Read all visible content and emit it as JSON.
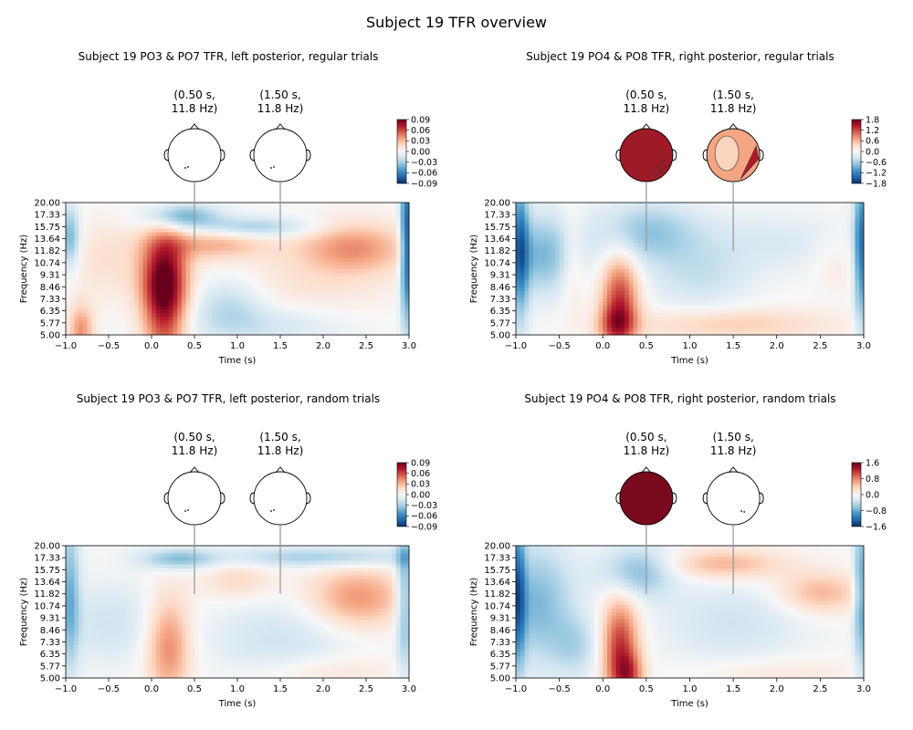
{
  "suptitle": "Subject 19 TFR overview",
  "colors": {
    "cmap": [
      "#053061",
      "#2166ac",
      "#4393c3",
      "#92c5de",
      "#d1e5f0",
      "#f7f7f7",
      "#fddbc7",
      "#f4a582",
      "#d6604d",
      "#b2182b",
      "#67001f"
    ],
    "connector": "#9a9a9a"
  },
  "chart_data": [
    {
      "type": "heatmap",
      "title": "Subject 19 PO3 & PO7 TFR, left posterior, regular trials",
      "xlabel": "Time (s)",
      "ylabel": "Frequency (Hz)",
      "xlim": [
        -1.0,
        3.0
      ],
      "xticks": [
        "−1.0",
        "−0.5",
        "0.0",
        "0.5",
        "1.0",
        "1.5",
        "2.0",
        "2.5",
        "3.0"
      ],
      "yticks": [
        "5.00",
        "5.77",
        "6.35",
        "7.33",
        "8.46",
        "9.31",
        "10.74",
        "11.82",
        "13.64",
        "15.75",
        "17.33",
        "20.00"
      ],
      "yvalues": [
        5.0,
        5.77,
        6.35,
        7.33,
        8.46,
        9.31,
        10.74,
        11.82,
        13.64,
        15.75,
        17.33,
        20.0
      ],
      "vlim": [
        -0.09,
        0.09
      ],
      "colorbar_ticks": [
        "0.09",
        "0.06",
        "0.03",
        "0.00",
        "−0.03",
        "−0.06",
        "−0.09"
      ],
      "topomaps": [
        {
          "title": "(0.50 s,\n11.8 Hz)",
          "time": 0.5,
          "freq": 11.8,
          "fill": "none",
          "contour": false
        },
        {
          "title": "(1.50 s,\n11.8 Hz)",
          "time": 1.5,
          "freq": 11.8,
          "fill": "none",
          "contour": false
        }
      ],
      "blobs": [
        {
          "t": 0.15,
          "f": 7.2,
          "st": 0.18,
          "sf": 0.6,
          "a": 0.85
        },
        {
          "t": 0.15,
          "f": 9.5,
          "st": 0.2,
          "sf": 0.35,
          "a": 0.35
        },
        {
          "t": -0.82,
          "f": 5.3,
          "st": 0.1,
          "sf": 0.25,
          "a": 0.45
        },
        {
          "t": 0.35,
          "f": 17.2,
          "st": 0.3,
          "sf": 0.12,
          "a": -0.5
        },
        {
          "t": 1.2,
          "f": 15.7,
          "st": 0.5,
          "sf": 0.1,
          "a": -0.35
        },
        {
          "t": 0.7,
          "f": 12.8,
          "st": 0.45,
          "sf": 0.15,
          "a": 0.35
        },
        {
          "t": 2.35,
          "f": 12.3,
          "st": 0.45,
          "sf": 0.25,
          "a": 0.45
        },
        {
          "t": 1.8,
          "f": 8.5,
          "st": 0.7,
          "sf": 0.35,
          "a": 0.12
        },
        {
          "t": -0.5,
          "f": 11.0,
          "st": 0.35,
          "sf": 0.4,
          "a": 0.15
        },
        {
          "t": 0.9,
          "f": 7.0,
          "st": 0.3,
          "sf": 0.25,
          "a": -0.25
        },
        {
          "t": -0.95,
          "f": 14.0,
          "st": 0.08,
          "sf": 0.3,
          "a": -0.5
        },
        {
          "t": 2.97,
          "f": 13.0,
          "st": 0.05,
          "sf": 0.8,
          "a": -0.9
        },
        {
          "t": 1.3,
          "f": 5.6,
          "st": 0.7,
          "sf": 0.2,
          "a": -0.2
        }
      ]
    },
    {
      "type": "heatmap",
      "title": "Subject 19 PO4 & PO8 TFR, right posterior, regular trials",
      "xlabel": "Time (s)",
      "ylabel": "Frequency (Hz)",
      "xlim": [
        -1.0,
        3.0
      ],
      "xticks": [
        "−1.0",
        "−0.5",
        "0.0",
        "0.5",
        "1.0",
        "1.5",
        "2.0",
        "2.5",
        "3.0"
      ],
      "yticks": [
        "5.00",
        "5.77",
        "6.35",
        "7.33",
        "8.46",
        "9.31",
        "10.74",
        "11.82",
        "13.64",
        "15.75",
        "17.33",
        "20.00"
      ],
      "yvalues": [
        5.0,
        5.77,
        6.35,
        7.33,
        8.46,
        9.31,
        10.74,
        11.82,
        13.64,
        15.75,
        17.33,
        20.0
      ],
      "vlim": [
        -1.8,
        1.8
      ],
      "colorbar_ticks": [
        "1.8",
        "1.2",
        "0.6",
        "0.0",
        "−0.6",
        "−1.2",
        "−1.8"
      ],
      "topomaps": [
        {
          "title": "(0.50 s,\n11.8 Hz)",
          "time": 0.5,
          "freq": 11.8,
          "fill": "#9e1a26",
          "contour": true
        },
        {
          "title": "(1.50 s,\n11.8 Hz)",
          "time": 1.5,
          "freq": 11.8,
          "fill": "#f4a582",
          "contour": true
        }
      ],
      "blobs": [
        {
          "t": 0.2,
          "f": 7.3,
          "st": 0.15,
          "sf": 0.45,
          "a": 0.7
        },
        {
          "t": 0.15,
          "f": 5.6,
          "st": 0.15,
          "sf": 0.2,
          "a": 0.4
        },
        {
          "t": -0.7,
          "f": 11.5,
          "st": 0.3,
          "sf": 0.4,
          "a": -0.45
        },
        {
          "t": 0.5,
          "f": 15.0,
          "st": 0.4,
          "sf": 0.3,
          "a": -0.35
        },
        {
          "t": -0.95,
          "f": 12.5,
          "st": 0.07,
          "sf": 0.8,
          "a": -0.6
        },
        {
          "t": 2.97,
          "f": 12.5,
          "st": 0.06,
          "sf": 0.8,
          "a": -0.7
        },
        {
          "t": -0.35,
          "f": 11.0,
          "st": 0.1,
          "sf": 0.5,
          "a": 0.2
        },
        {
          "t": 1.5,
          "f": 5.7,
          "st": 0.8,
          "sf": 0.15,
          "a": 0.25
        },
        {
          "t": 1.8,
          "f": 13.0,
          "st": 1.0,
          "sf": 0.3,
          "a": -0.15
        },
        {
          "t": 2.7,
          "f": 11.0,
          "st": 0.2,
          "sf": 0.3,
          "a": 0.12
        },
        {
          "t": 1.1,
          "f": 9.0,
          "st": 0.4,
          "sf": 0.3,
          "a": -0.2
        }
      ]
    },
    {
      "type": "heatmap",
      "title": "Subject 19 PO3 & PO7 TFR, left posterior, random trials",
      "xlabel": "Time (s)",
      "ylabel": "Frequency (Hz)",
      "xlim": [
        -1.0,
        3.0
      ],
      "xticks": [
        "−1.0",
        "−0.5",
        "0.0",
        "0.5",
        "1.0",
        "1.5",
        "2.0",
        "2.5",
        "3.0"
      ],
      "yticks": [
        "5.00",
        "5.77",
        "6.35",
        "7.33",
        "8.46",
        "9.31",
        "10.74",
        "11.82",
        "13.64",
        "15.75",
        "17.33",
        "20.00"
      ],
      "yvalues": [
        5.0,
        5.77,
        6.35,
        7.33,
        8.46,
        9.31,
        10.74,
        11.82,
        13.64,
        15.75,
        17.33,
        20.0
      ],
      "vlim": [
        -0.09,
        0.09
      ],
      "colorbar_ticks": [
        "0.09",
        "0.06",
        "0.03",
        "0.00",
        "−0.03",
        "−0.06",
        "−0.09"
      ],
      "topomaps": [
        {
          "title": "(0.50 s,\n11.8 Hz)",
          "time": 0.5,
          "freq": 11.8,
          "fill": "none",
          "contour": false
        },
        {
          "title": "(1.50 s,\n11.8 Hz)",
          "time": 1.5,
          "freq": 11.8,
          "fill": "none",
          "contour": false
        }
      ],
      "blobs": [
        {
          "t": 0.2,
          "f": 7.0,
          "st": 0.18,
          "sf": 0.5,
          "a": 0.5
        },
        {
          "t": 0.3,
          "f": 17.2,
          "st": 0.3,
          "sf": 0.1,
          "a": -0.4
        },
        {
          "t": 2.0,
          "f": 17.5,
          "st": 0.9,
          "sf": 0.1,
          "a": -0.35
        },
        {
          "t": -0.95,
          "f": 12.0,
          "st": 0.08,
          "sf": 0.8,
          "a": -0.45
        },
        {
          "t": 2.95,
          "f": 12.0,
          "st": 0.07,
          "sf": 0.8,
          "a": -0.5
        },
        {
          "t": 2.4,
          "f": 11.5,
          "st": 0.4,
          "sf": 0.3,
          "a": 0.45
        },
        {
          "t": 1.0,
          "f": 14.0,
          "st": 0.3,
          "sf": 0.2,
          "a": 0.2
        },
        {
          "t": 1.5,
          "f": 7.5,
          "st": 0.6,
          "sf": 0.4,
          "a": -0.2
        },
        {
          "t": -0.5,
          "f": 9.0,
          "st": 0.4,
          "sf": 0.4,
          "a": -0.2
        },
        {
          "t": 2.0,
          "f": 5.5,
          "st": 0.6,
          "sf": 0.15,
          "a": 0.15
        }
      ]
    },
    {
      "type": "heatmap",
      "title": "Subject 19 PO4 & PO8 TFR, right posterior, random trials",
      "xlabel": "Time (s)",
      "ylabel": "Frequency (Hz)",
      "xlim": [
        -1.0,
        3.0
      ],
      "xticks": [
        "−1.0",
        "−0.5",
        "0.0",
        "0.5",
        "1.0",
        "1.5",
        "2.0",
        "2.5",
        "3.0"
      ],
      "yticks": [
        "5.00",
        "5.77",
        "6.35",
        "7.33",
        "8.46",
        "9.31",
        "10.74",
        "11.82",
        "13.64",
        "15.75",
        "17.33",
        "20.00"
      ],
      "yvalues": [
        5.0,
        5.77,
        6.35,
        7.33,
        8.46,
        9.31,
        10.74,
        11.82,
        13.64,
        15.75,
        17.33,
        20.0
      ],
      "vlim": [
        -1.6,
        1.6
      ],
      "colorbar_ticks": [
        "1.6",
        "0.8",
        "0.0",
        "−0.8",
        "−1.6"
      ],
      "cb_tickvals": [
        1.6,
        0.8,
        0.0,
        -0.8,
        -1.6
      ],
      "topomaps": [
        {
          "title": "(0.50 s,\n11.8 Hz)",
          "time": 0.5,
          "freq": 11.8,
          "fill": "#7a0a1e",
          "contour": false
        },
        {
          "title": "(1.50 s,\n11.8 Hz)",
          "time": 1.5,
          "freq": 11.8,
          "fill": "none",
          "contour": false
        }
      ],
      "blobs": [
        {
          "t": 0.2,
          "f": 6.8,
          "st": 0.15,
          "sf": 0.5,
          "a": 0.75
        },
        {
          "t": 0.3,
          "f": 5.2,
          "st": 0.12,
          "sf": 0.2,
          "a": 0.4
        },
        {
          "t": -0.75,
          "f": 11.0,
          "st": 0.3,
          "sf": 0.6,
          "a": -0.45
        },
        {
          "t": 0.4,
          "f": 15.5,
          "st": 0.3,
          "sf": 0.25,
          "a": -0.45
        },
        {
          "t": 1.4,
          "f": 16.5,
          "st": 0.5,
          "sf": 0.15,
          "a": 0.35
        },
        {
          "t": 2.5,
          "f": 12.0,
          "st": 0.35,
          "sf": 0.2,
          "a": 0.35
        },
        {
          "t": -0.97,
          "f": 12.0,
          "st": 0.06,
          "sf": 0.8,
          "a": -0.6
        },
        {
          "t": 2.97,
          "f": 12.0,
          "st": 0.06,
          "sf": 0.8,
          "a": -0.55
        },
        {
          "t": 1.5,
          "f": 9.0,
          "st": 0.6,
          "sf": 0.4,
          "a": -0.2
        },
        {
          "t": -0.3,
          "f": 7.0,
          "st": 0.2,
          "sf": 0.3,
          "a": -0.25
        },
        {
          "t": 2.0,
          "f": 5.4,
          "st": 0.6,
          "sf": 0.15,
          "a": 0.12
        }
      ]
    }
  ]
}
